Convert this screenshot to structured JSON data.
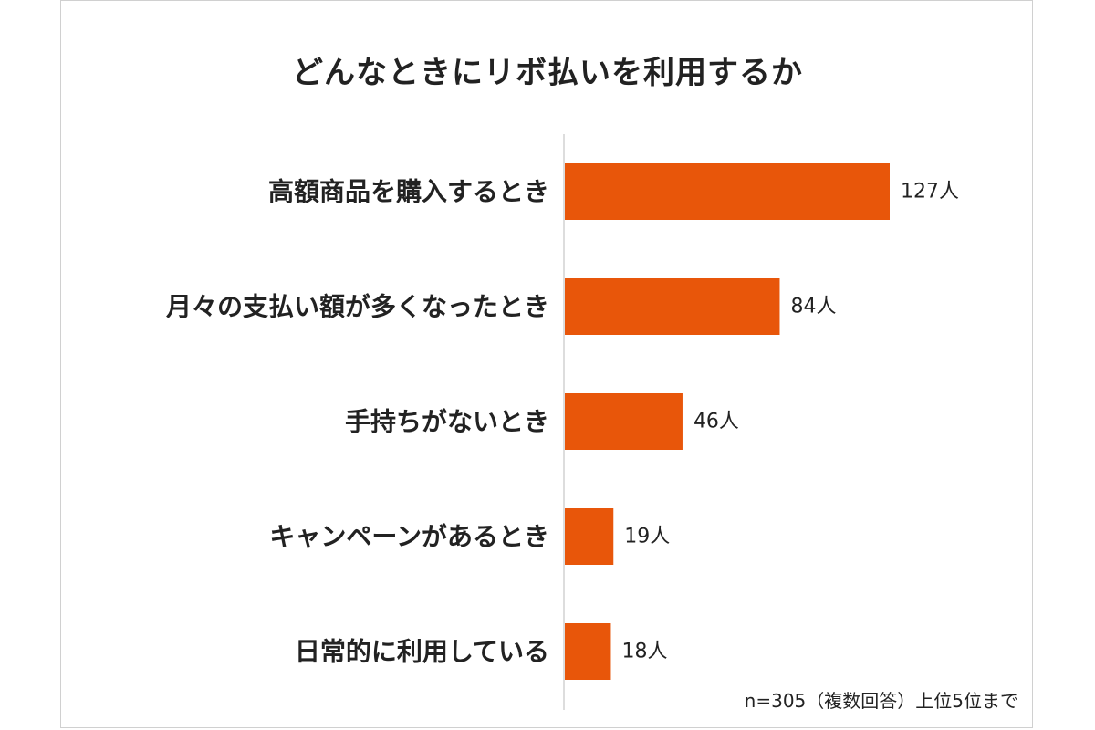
{
  "chart_data": {
    "type": "bar",
    "orientation": "horizontal",
    "title": "どんなときにリボ払いを利用するか",
    "categories": [
      "高額商品を購入するとき",
      "月々の支払い額が多くなったとき",
      "手持ちがないとき",
      "キャンペーンがあるとき",
      "日常的に利用している"
    ],
    "values": [
      127,
      84,
      46,
      19,
      18
    ],
    "value_labels": [
      "127人",
      "84人",
      "46人",
      "19人",
      "18人"
    ],
    "bar_color": "#E8560A",
    "grid": false,
    "note": "n=305（複数回答）上位5位まで"
  }
}
